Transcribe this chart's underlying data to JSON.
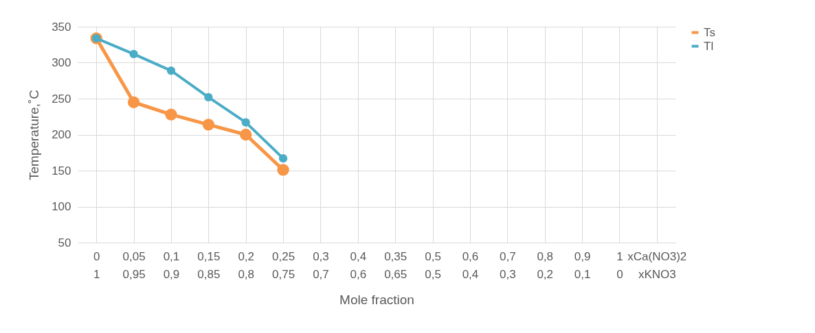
{
  "chart_data": {
    "type": "line",
    "xlabel": "Mole fraction",
    "ylabel": "Temperature,˚C",
    "categories": [
      "0\n1",
      "0,05\n0,95",
      "0,1\n0,9",
      "0,15\n0,85",
      "0,2\n0,8",
      "0,25\n0,75",
      "0,3\n0,7",
      "0,4\n0,6",
      "0,35\n0,65",
      "0,5\n0,5",
      "0,6\n0,4",
      "0,7\n0,3",
      "0,8\n0,2",
      "0,9\n0,1",
      "1\n0",
      "xCa(NO3)2\nxKNO3"
    ],
    "series": [
      {
        "name": "Ts",
        "color": "#f79646",
        "values": [
          334,
          245,
          228,
          214,
          200,
          151,
          null,
          null,
          null,
          null,
          null,
          null,
          null,
          null,
          null,
          null
        ]
      },
      {
        "name": "Tl",
        "color": "#4bacc6",
        "values": [
          334,
          312,
          289,
          252,
          217,
          167,
          null,
          null,
          null,
          null,
          null,
          null,
          null,
          null,
          null,
          null
        ]
      }
    ],
    "ylim": [
      50,
      350
    ],
    "yticks": [
      50,
      100,
      150,
      200,
      250,
      300,
      350
    ],
    "grid": true,
    "legend": "right",
    "marker": "circle",
    "line_style": "solid"
  }
}
